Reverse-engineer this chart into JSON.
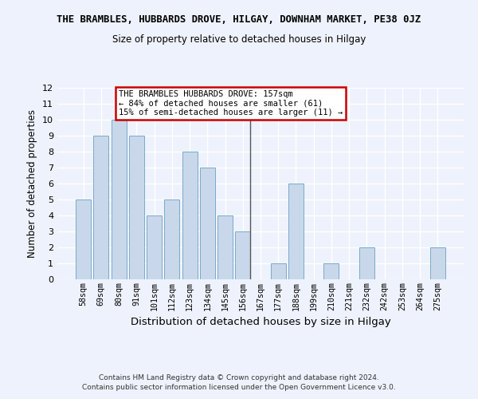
{
  "title_line1": "THE BRAMBLES, HUBBARDS DROVE, HILGAY, DOWNHAM MARKET, PE38 0JZ",
  "title_line2": "Size of property relative to detached houses in Hilgay",
  "xlabel": "Distribution of detached houses by size in Hilgay",
  "ylabel": "Number of detached properties",
  "categories": [
    "58sqm",
    "69sqm",
    "80sqm",
    "91sqm",
    "101sqm",
    "112sqm",
    "123sqm",
    "134sqm",
    "145sqm",
    "156sqm",
    "167sqm",
    "177sqm",
    "188sqm",
    "199sqm",
    "210sqm",
    "221sqm",
    "232sqm",
    "242sqm",
    "253sqm",
    "264sqm",
    "275sqm"
  ],
  "values": [
    5,
    9,
    10,
    9,
    4,
    5,
    8,
    7,
    4,
    3,
    0,
    1,
    6,
    0,
    1,
    0,
    2,
    0,
    0,
    0,
    2
  ],
  "bar_color": "#c8d8ea",
  "bar_edge_color": "#7aaac8",
  "highlight_index": 9,
  "highlight_line_color": "#555555",
  "ylim": [
    0,
    12
  ],
  "yticks": [
    0,
    1,
    2,
    3,
    4,
    5,
    6,
    7,
    8,
    9,
    10,
    11,
    12
  ],
  "annotation_text": "THE BRAMBLES HUBBARDS DROVE: 157sqm\n← 84% of detached houses are smaller (61)\n15% of semi-detached houses are larger (11) →",
  "annotation_box_color": "#ffffff",
  "annotation_box_edge": "#cc0000",
  "footer_line1": "Contains HM Land Registry data © Crown copyright and database right 2024.",
  "footer_line2": "Contains public sector information licensed under the Open Government Licence v3.0.",
  "background_color": "#eef2fc",
  "grid_color": "#ffffff"
}
